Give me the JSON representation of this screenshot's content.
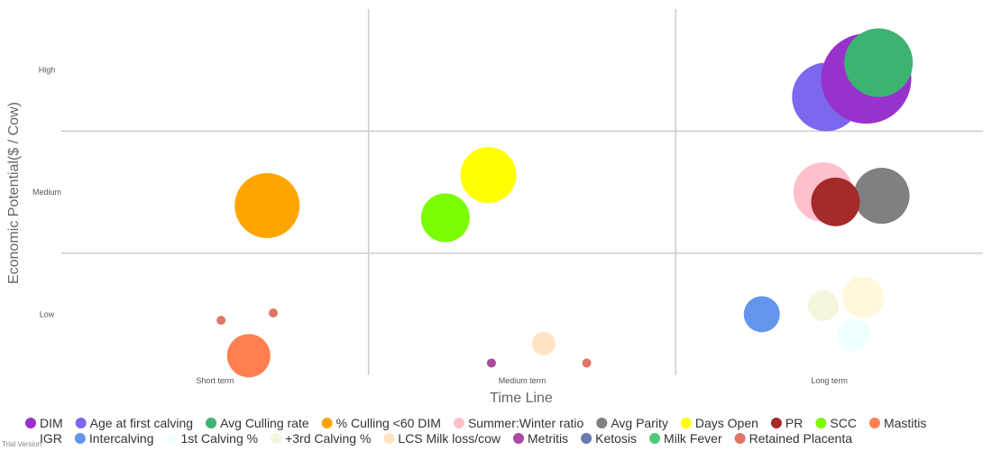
{
  "chart_data": {
    "type": "scatter",
    "title": "",
    "xlabel": "Time Line",
    "ylabel": "Economic Potential($ / Cow)",
    "x_categories": [
      "Short term",
      "Medium term",
      "Long term"
    ],
    "y_categories": [
      "Low",
      "Medium",
      "High"
    ],
    "xlim": [
      0,
      3
    ],
    "ylim": [
      0,
      3
    ],
    "grid": true,
    "legend_position": "bottom",
    "series": [
      {
        "name": "DIM",
        "color": "#9932CC",
        "points": [
          {
            "x": 2.62,
            "y": 2.43,
            "size": 50
          }
        ]
      },
      {
        "name": "Age at first calving",
        "color": "#7B68EE",
        "points": [
          {
            "x": 2.49,
            "y": 2.28,
            "size": 38
          }
        ]
      },
      {
        "name": "Avg Culling rate",
        "color": "#3CB371",
        "points": [
          {
            "x": 2.66,
            "y": 2.56,
            "size": 38
          }
        ]
      },
      {
        "name": "% Culling <60 DIM",
        "color": "#FFA500",
        "points": [
          {
            "x": 0.67,
            "y": 1.39,
            "size": 36
          }
        ]
      },
      {
        "name": "Summer:Winter ratio",
        "color": "#FFC0CB",
        "points": [
          {
            "x": 2.48,
            "y": 1.5,
            "size": 33
          }
        ]
      },
      {
        "name": "Avg Parity",
        "color": "#808080",
        "points": [
          {
            "x": 2.67,
            "y": 1.47,
            "size": 31
          }
        ]
      },
      {
        "name": "Days Open",
        "color": "#FFFF00",
        "points": [
          {
            "x": 1.39,
            "y": 1.64,
            "size": 31
          }
        ]
      },
      {
        "name": "PR",
        "color": "#A52A2A",
        "points": [
          {
            "x": 2.52,
            "y": 1.42,
            "size": 27
          }
        ]
      },
      {
        "name": "SCC",
        "color": "#7CFC00",
        "points": [
          {
            "x": 1.25,
            "y": 1.29,
            "size": 27
          }
        ]
      },
      {
        "name": "Mastitis",
        "color": "#FF7F50",
        "points": [
          {
            "x": 0.61,
            "y": 0.16,
            "size": 24
          }
        ]
      },
      {
        "name": "IGR",
        "color": "#FFFFFF",
        "points": []
      },
      {
        "name": "Intercalving",
        "color": "#6495ED",
        "points": [
          {
            "x": 2.28,
            "y": 0.5,
            "size": 20
          }
        ]
      },
      {
        "name": "1st Calving %",
        "color": "#F0FFFF",
        "points": [
          {
            "x": 2.58,
            "y": 0.33,
            "size": 18
          }
        ]
      },
      {
        "name": "+3rd Calving %",
        "color": "#F5F5DC",
        "points": [
          {
            "x": 2.48,
            "y": 0.57,
            "size": 17
          }
        ]
      },
      {
        "name": "LCS Milk loss/cow",
        "color": "#FFE4C4",
        "points": [
          {
            "x": 1.57,
            "y": 0.26,
            "size": 13
          }
        ]
      },
      {
        "name": "Metritis",
        "color": "#A84A9E",
        "points": [
          {
            "x": 1.4,
            "y": 0.1,
            "size": 5
          }
        ]
      },
      {
        "name": "Ketosis",
        "color": "#6B7BAF",
        "points": []
      },
      {
        "name": "Milk Fever",
        "color": "#50C878",
        "points": []
      },
      {
        "name": "Retained Placenta",
        "color": "#E07565",
        "points": [
          {
            "x": 0.52,
            "y": 0.45,
            "size": 5
          },
          {
            "x": 0.69,
            "y": 0.51,
            "size": 5
          },
          {
            "x": 1.71,
            "y": 0.1,
            "size": 5
          }
        ]
      },
      {
        "name": "",
        "color": "#FFF8DC",
        "points": [
          {
            "x": 2.61,
            "y": 0.64,
            "size": 23
          }
        ]
      }
    ]
  },
  "footer": {
    "trial_text": "Trial Version"
  }
}
